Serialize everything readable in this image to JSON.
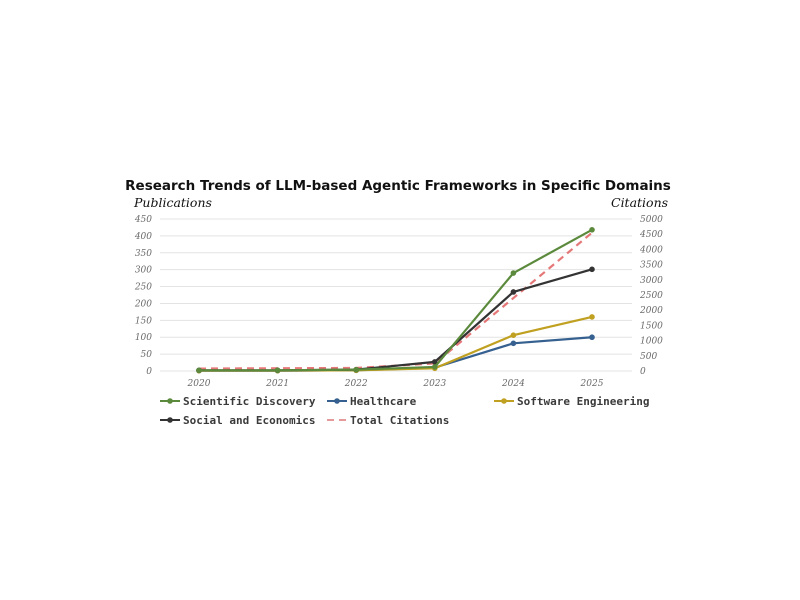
{
  "chart_data": {
    "type": "line",
    "title": "Research Trends of LLM-based Agentic Frameworks in Specific Domains",
    "ylabel": "Publications",
    "y2label": "Citations",
    "x": [
      "2020",
      "2021",
      "2022",
      "2023",
      "2024",
      "2025"
    ],
    "ylim": [
      0,
      450
    ],
    "y2lim": [
      0,
      5000
    ],
    "yticks": [
      0,
      50,
      100,
      150,
      200,
      250,
      300,
      350,
      400,
      450
    ],
    "y2ticks": [
      0,
      500,
      1000,
      1500,
      2000,
      2500,
      3000,
      3500,
      4000,
      4500,
      5000
    ],
    "grid": true,
    "legend_position": "bottom",
    "series": [
      {
        "name": "Scientific Discovery",
        "axis": "left",
        "color": "#5b8a3c",
        "style": "solid",
        "values": [
          2,
          2,
          4,
          12,
          290,
          418
        ]
      },
      {
        "name": "Healthcare",
        "axis": "left",
        "color": "#35608f",
        "style": "solid",
        "values": [
          1,
          1,
          2,
          10,
          82,
          100
        ]
      },
      {
        "name": "Software Engineering",
        "axis": "left",
        "color": "#c0a020",
        "style": "solid",
        "values": [
          1,
          1,
          2,
          8,
          106,
          160
        ]
      },
      {
        "name": "Social and Economics",
        "axis": "left",
        "color": "#333333",
        "style": "solid",
        "values": [
          2,
          2,
          4,
          27,
          234,
          301
        ]
      },
      {
        "name": "Total Citations",
        "axis": "right",
        "color": "#e06060",
        "style": "dashed",
        "values": [
          80,
          90,
          100,
          250,
          2400,
          4550
        ]
      }
    ]
  }
}
